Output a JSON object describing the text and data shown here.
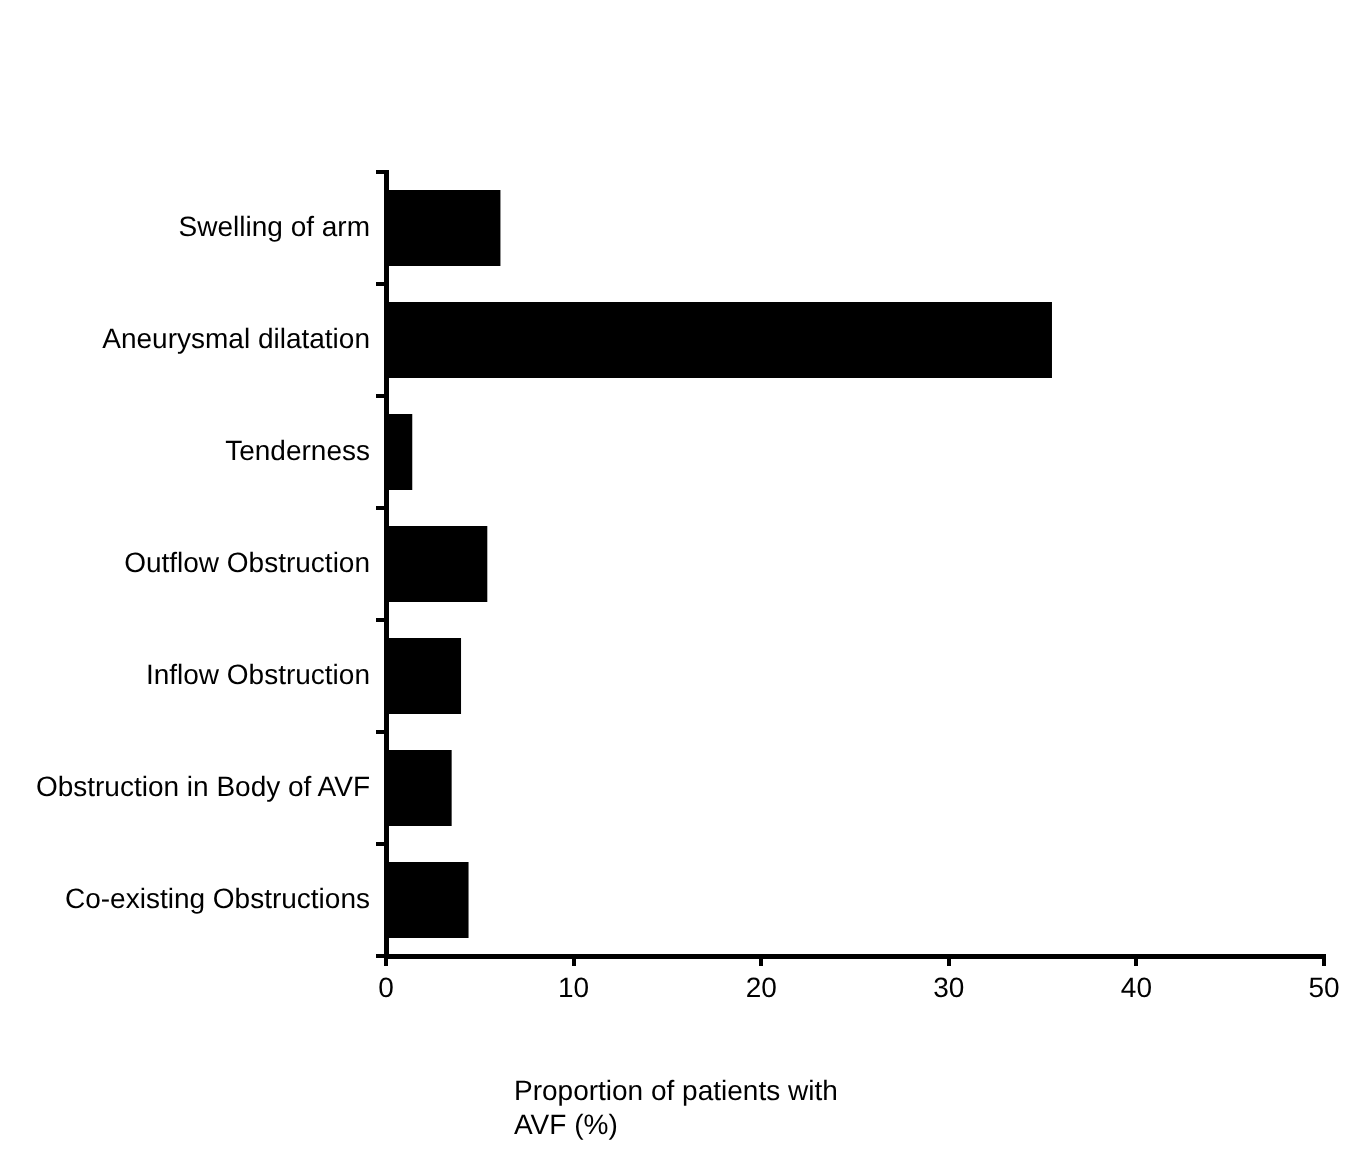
{
  "chart_data": {
    "type": "bar",
    "orientation": "horizontal",
    "xlabel": "Proportion of patients with AVF (%)",
    "categories": [
      "Swelling of arm",
      "Aneurysmal dilatation",
      "Tenderness",
      "Outflow Obstruction",
      "Inflow Obstruction",
      "Obstruction in Body of AVF",
      "Co-existing Obstructions"
    ],
    "values": [
      6.1,
      35.5,
      1.4,
      5.4,
      4.0,
      3.5,
      4.4
    ],
    "color": "#000000",
    "xlim": [
      0,
      50
    ],
    "xticks": [
      0,
      10,
      20,
      30,
      40,
      50
    ],
    "grid": false,
    "legend": false
  }
}
